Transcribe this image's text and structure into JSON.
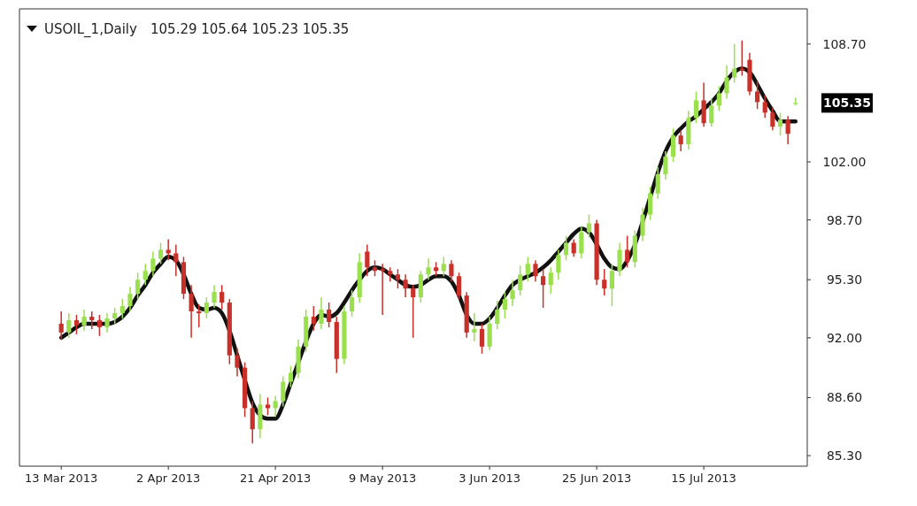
{
  "chart_data": {
    "type": "candlestick",
    "title": "USOIL_1,Daily",
    "categories": [
      "13 Mar 2013",
      null,
      null,
      null,
      null,
      null,
      null,
      null,
      null,
      null,
      null,
      null,
      null,
      null,
      "2 Apr 2013",
      null,
      null,
      null,
      null,
      null,
      null,
      null,
      null,
      null,
      null,
      null,
      null,
      null,
      "21 Apr 2013",
      null,
      null,
      null,
      null,
      null,
      null,
      null,
      null,
      null,
      null,
      null,
      null,
      null,
      "9 May 2013",
      null,
      null,
      null,
      null,
      null,
      null,
      null,
      null,
      null,
      null,
      null,
      null,
      null,
      "3 Jun 2013",
      null,
      null,
      null,
      null,
      null,
      null,
      null,
      null,
      null,
      null,
      null,
      null,
      null,
      "25 Jun 2013",
      null,
      null,
      null,
      null,
      null,
      null,
      null,
      null,
      null,
      null,
      null,
      null,
      null,
      "15 Jul 2013",
      null,
      null,
      null,
      null,
      null,
      null,
      null,
      null,
      null,
      null,
      null,
      null
    ],
    "ohlc": [
      [
        92.8,
        93.5,
        91.9,
        92.3
      ],
      [
        92.3,
        93.4,
        92.0,
        93.0
      ],
      [
        93.0,
        93.3,
        92.2,
        92.7
      ],
      [
        92.7,
        93.6,
        92.4,
        93.2
      ],
      [
        93.2,
        93.5,
        92.5,
        93.0
      ],
      [
        93.0,
        93.3,
        92.1,
        92.6
      ],
      [
        92.6,
        93.4,
        92.3,
        93.1
      ],
      [
        93.1,
        93.7,
        92.8,
        93.4
      ],
      [
        93.4,
        94.2,
        93.1,
        93.8
      ],
      [
        93.8,
        94.9,
        93.5,
        94.5
      ],
      [
        94.5,
        95.7,
        94.2,
        95.3
      ],
      [
        95.3,
        96.2,
        95.0,
        95.8
      ],
      [
        95.8,
        96.9,
        95.5,
        96.5
      ],
      [
        96.5,
        97.4,
        96.2,
        97.0
      ],
      [
        97.0,
        97.6,
        96.4,
        96.8
      ],
      [
        96.8,
        97.3,
        95.5,
        96.3
      ],
      [
        96.3,
        96.6,
        94.2,
        94.5
      ],
      [
        94.5,
        95.0,
        92.0,
        93.5
      ],
      [
        93.5,
        93.9,
        92.6,
        93.4
      ],
      [
        93.4,
        94.3,
        93.1,
        94.0
      ],
      [
        94.0,
        95.0,
        93.7,
        94.6
      ],
      [
        94.6,
        95.0,
        93.6,
        94.0
      ],
      [
        94.0,
        94.2,
        90.5,
        91.0
      ],
      [
        91.0,
        91.4,
        89.8,
        90.3
      ],
      [
        90.3,
        90.6,
        87.5,
        88.0
      ],
      [
        88.0,
        88.4,
        86.0,
        86.8
      ],
      [
        86.8,
        88.8,
        86.3,
        88.2
      ],
      [
        88.2,
        88.6,
        87.6,
        88.0
      ],
      [
        88.0,
        88.7,
        87.5,
        88.4
      ],
      [
        88.4,
        89.8,
        88.1,
        89.5
      ],
      [
        89.5,
        90.4,
        89.2,
        90.0
      ],
      [
        90.0,
        91.9,
        89.7,
        91.5
      ],
      [
        91.5,
        93.6,
        91.2,
        93.2
      ],
      [
        93.2,
        93.8,
        92.4,
        92.8
      ],
      [
        92.8,
        94.3,
        92.5,
        93.6
      ],
      [
        93.6,
        94.0,
        92.6,
        92.9
      ],
      [
        92.9,
        93.2,
        90.0,
        90.8
      ],
      [
        90.8,
        93.8,
        90.5,
        93.5
      ],
      [
        93.5,
        94.7,
        93.2,
        94.3
      ],
      [
        94.3,
        96.8,
        94.0,
        96.3
      ],
      [
        96.9,
        97.3,
        95.5,
        96.0
      ],
      [
        96.0,
        96.4,
        95.5,
        95.8
      ],
      [
        95.9,
        96.2,
        93.3,
        95.8
      ],
      [
        95.8,
        96.0,
        95.2,
        95.6
      ],
      [
        95.6,
        95.9,
        94.8,
        95.3
      ],
      [
        95.3,
        95.6,
        94.3,
        94.8
      ],
      [
        94.8,
        95.0,
        92.0,
        94.3
      ],
      [
        94.3,
        95.8,
        94.0,
        95.6
      ],
      [
        95.6,
        96.5,
        95.3,
        96.0
      ],
      [
        96.0,
        96.3,
        95.5,
        95.8
      ],
      [
        95.8,
        96.6,
        95.5,
        96.2
      ],
      [
        96.2,
        96.4,
        95.2,
        95.5
      ],
      [
        95.5,
        95.7,
        94.2,
        94.4
      ],
      [
        94.4,
        94.6,
        92.0,
        92.3
      ],
      [
        92.3,
        93.4,
        91.8,
        92.5
      ],
      [
        92.5,
        92.8,
        91.1,
        91.5
      ],
      [
        91.5,
        93.2,
        91.3,
        92.8
      ],
      [
        92.8,
        94.1,
        92.5,
        93.6
      ],
      [
        93.6,
        94.6,
        93.1,
        94.2
      ],
      [
        94.2,
        95.3,
        93.8,
        94.7
      ],
      [
        94.7,
        96.1,
        94.4,
        95.6
      ],
      [
        95.6,
        96.6,
        95.2,
        96.2
      ],
      [
        96.2,
        96.4,
        95.2,
        95.5
      ],
      [
        95.5,
        95.9,
        93.7,
        95.0
      ],
      [
        95.0,
        96.0,
        94.5,
        95.7
      ],
      [
        95.7,
        97.0,
        95.3,
        96.7
      ],
      [
        96.7,
        97.8,
        96.4,
        97.4
      ],
      [
        97.4,
        97.6,
        96.6,
        96.8
      ],
      [
        96.8,
        98.3,
        96.5,
        98.0
      ],
      [
        98.0,
        99.0,
        97.7,
        98.5
      ],
      [
        98.5,
        98.7,
        95.0,
        95.3
      ],
      [
        95.3,
        95.9,
        94.4,
        94.8
      ],
      [
        94.8,
        96.2,
        93.8,
        95.8
      ],
      [
        95.8,
        97.4,
        95.5,
        97.0
      ],
      [
        97.0,
        97.8,
        96.0,
        96.3
      ],
      [
        96.3,
        98.1,
        96.0,
        97.8
      ],
      [
        97.8,
        99.4,
        97.5,
        99.0
      ],
      [
        99.0,
        100.6,
        98.7,
        100.2
      ],
      [
        100.2,
        101.7,
        99.9,
        101.3
      ],
      [
        101.3,
        102.6,
        101.0,
        102.3
      ],
      [
        102.3,
        103.9,
        102.0,
        103.5
      ],
      [
        103.5,
        103.8,
        102.6,
        103.0
      ],
      [
        103.0,
        104.9,
        102.7,
        104.5
      ],
      [
        104.5,
        106.0,
        104.2,
        105.5
      ],
      [
        105.5,
        106.5,
        104.0,
        104.2
      ],
      [
        104.2,
        105.6,
        104.0,
        105.2
      ],
      [
        105.2,
        106.3,
        104.9,
        105.9
      ],
      [
        105.9,
        107.5,
        105.6,
        106.8
      ],
      [
        106.8,
        108.7,
        106.5,
        107.3
      ],
      [
        107.3,
        108.9,
        106.9,
        107.2
      ],
      [
        107.8,
        108.2,
        105.8,
        106.0
      ],
      [
        106.0,
        106.6,
        105.0,
        105.4
      ],
      [
        105.4,
        105.8,
        104.5,
        104.8
      ],
      [
        104.8,
        105.1,
        103.8,
        104.0
      ],
      [
        104.0,
        104.8,
        103.5,
        104.4
      ],
      [
        104.4,
        104.6,
        103.0,
        103.6
      ],
      [
        105.29,
        105.64,
        105.23,
        105.35
      ]
    ],
    "colors": [
      "#c8302a",
      "#9ae04c",
      "#c8302a",
      "#9ae04c",
      "#c8302a",
      "#c8302a",
      "#9ae04c",
      "#9ae04c",
      "#9ae04c",
      "#9ae04c",
      "#9ae04c",
      "#9ae04c",
      "#9ae04c",
      "#9ae04c",
      "#c8302a",
      "#c8302a",
      "#c8302a",
      "#c8302a",
      "#c8302a",
      "#9ae04c",
      "#9ae04c",
      "#c8302a",
      "#c8302a",
      "#c8302a",
      "#c8302a",
      "#c8302a",
      "#9ae04c",
      "#c8302a",
      "#9ae04c",
      "#9ae04c",
      "#9ae04c",
      "#9ae04c",
      "#9ae04c",
      "#c8302a",
      "#9ae04c",
      "#c8302a",
      "#c8302a",
      "#9ae04c",
      "#9ae04c",
      "#9ae04c",
      "#c8302a",
      "#c8302a",
      "#c8302a",
      "#c8302a",
      "#c8302a",
      "#c8302a",
      "#c8302a",
      "#9ae04c",
      "#9ae04c",
      "#c8302a",
      "#9ae04c",
      "#c8302a",
      "#c8302a",
      "#c8302a",
      "#9ae04c",
      "#c8302a",
      "#9ae04c",
      "#9ae04c",
      "#9ae04c",
      "#9ae04c",
      "#9ae04c",
      "#9ae04c",
      "#c8302a",
      "#c8302a",
      "#9ae04c",
      "#9ae04c",
      "#9ae04c",
      "#c8302a",
      "#9ae04c",
      "#9ae04c",
      "#c8302a",
      "#c8302a",
      "#9ae04c",
      "#9ae04c",
      "#c8302a",
      "#9ae04c",
      "#9ae04c",
      "#9ae04c",
      "#9ae04c",
      "#9ae04c",
      "#9ae04c",
      "#c8302a",
      "#9ae04c",
      "#9ae04c",
      "#c8302a",
      "#9ae04c",
      "#9ae04c",
      "#9ae04c",
      "#9ae04c",
      "#c8302a",
      "#c8302a",
      "#c8302a",
      "#c8302a",
      "#c8302a",
      "#9ae04c",
      "#c8302a",
      "#9ae04c"
    ],
    "subtitle": "105.29 105.64 105.23 105.35",
    "series": [
      {
        "type": "line",
        "color": "#111111",
        "values": [
          92.0,
          92.3,
          92.6,
          92.8,
          92.8,
          92.8,
          92.8,
          92.9,
          93.2,
          93.7,
          94.4,
          95.0,
          95.7,
          96.2,
          96.6,
          96.4,
          95.6,
          94.5,
          93.7,
          93.6,
          93.7,
          93.4,
          92.4,
          91.0,
          89.6,
          88.3,
          87.6,
          87.4,
          87.4,
          88.2,
          89.4,
          90.6,
          91.8,
          92.8,
          93.3,
          93.2,
          93.4,
          94.0,
          94.7,
          95.3,
          95.8,
          96.0,
          95.9,
          95.6,
          95.3,
          95.0,
          94.9,
          95.0,
          95.3,
          95.5,
          95.5,
          95.2,
          94.4,
          93.3,
          92.8,
          92.8,
          93.1,
          93.7,
          94.4,
          95.0,
          95.3,
          95.5,
          95.7,
          96.0,
          96.4,
          96.9,
          97.4,
          97.9,
          98.2,
          98.0,
          97.3,
          96.5,
          96.0,
          95.9,
          96.4,
          97.3,
          98.6,
          100.0,
          101.4,
          102.6,
          103.4,
          103.9,
          104.3,
          104.6,
          105.0,
          105.4,
          105.9,
          106.6,
          107.1,
          107.3,
          107.1,
          106.4,
          105.6,
          104.9,
          104.3,
          104.3,
          104.3
        ]
      }
    ],
    "ylim": [
      84.7,
      110.7
    ],
    "yticks": [
      {
        "value": 85.3,
        "label": "85.30"
      },
      {
        "value": 88.6,
        "label": "88.60"
      },
      {
        "value": 92,
        "label": "92.00"
      },
      {
        "value": 95.3,
        "label": "95.30"
      },
      {
        "value": 98.7,
        "label": "98.70"
      },
      {
        "value": 102,
        "label": "102.00"
      },
      {
        "value": 108.7,
        "label": "108.70"
      }
    ],
    "annotations": [
      "105.35"
    ],
    "grid": false
  }
}
